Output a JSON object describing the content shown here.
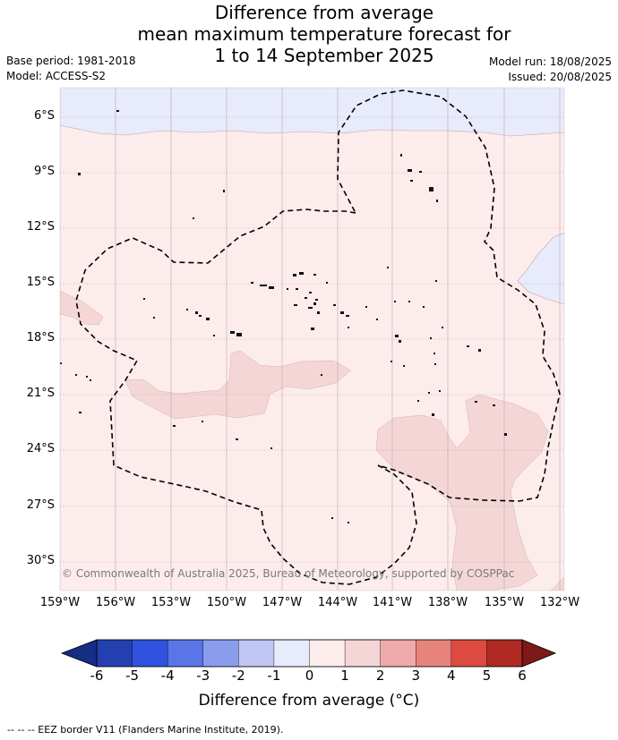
{
  "title": {
    "line1": "Difference from average",
    "line2": "mean maximum temperature forecast for",
    "line3": "1 to 14 September 2025"
  },
  "meta": {
    "base_period": "Base period: 1981-2018",
    "model": "Model: ACCESS-S2",
    "model_run": "Model run: 18/08/2025",
    "issued": "Issued: 20/08/2025"
  },
  "axes": {
    "lat_labels": [
      "6°S",
      "9°S",
      "12°S",
      "15°S",
      "18°S",
      "21°S",
      "24°S",
      "27°S",
      "30°S"
    ],
    "lon_labels": [
      "159°W",
      "156°W",
      "153°W",
      "150°W",
      "147°W",
      "144°W",
      "141°W",
      "138°W",
      "135°W",
      "132°W"
    ]
  },
  "colorbar": {
    "ticks": [
      "-6",
      "-5",
      "-4",
      "-3",
      "-2",
      "-1",
      "0",
      "1",
      "2",
      "3",
      "4",
      "5",
      "6"
    ],
    "colors": [
      "#2440b0",
      "#2f52e0",
      "#5a75e6",
      "#8a9ded",
      "#c0c6f3",
      "#e8ebfb",
      "#fcecec",
      "#f5d6d6",
      "#efaaaa",
      "#e8837c",
      "#dd4a40",
      "#ae2a22"
    ],
    "low_extend_color": "#152d85",
    "high_extend_color": "#7d1a17",
    "label": "Difference from average (°C)"
  },
  "map": {
    "base_color": "#fcecec",
    "cool_color": "#e8ebfb",
    "warm_color": "#f5d6d6",
    "credit": "© Commonwealth of Australia 2025, Bureau of Meteorology, supported by COSPPac"
  },
  "legend": {
    "eez": "--  --  -- EEZ border V11 (Flanders Marine Institute, 2019)."
  }
}
